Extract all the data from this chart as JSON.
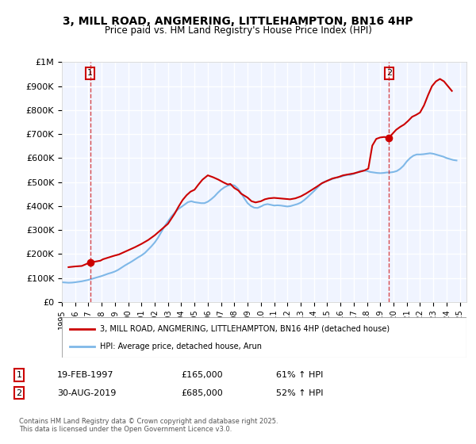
{
  "title": "3, MILL ROAD, ANGMERING, LITTLEHAMPTON, BN16 4HP",
  "subtitle": "Price paid vs. HM Land Registry's House Price Index (HPI)",
  "ylabel": "",
  "ylim": [
    0,
    1000000
  ],
  "yticks": [
    0,
    100000,
    200000,
    300000,
    400000,
    500000,
    600000,
    700000,
    800000,
    900000,
    1000000
  ],
  "ytick_labels": [
    "£0",
    "£100K",
    "£200K",
    "£300K",
    "£400K",
    "£500K",
    "£600K",
    "£700K",
    "£800K",
    "£900K",
    "£1M"
  ],
  "xlim_start": 1995.0,
  "xlim_end": 2025.5,
  "background_color": "#f0f4ff",
  "plot_bg_color": "#f0f4ff",
  "grid_color": "#ffffff",
  "red_line_color": "#cc0000",
  "blue_line_color": "#7fb8e8",
  "marker1_date": 1997.13,
  "marker1_value": 165000,
  "marker1_label": "1",
  "marker2_date": 2019.66,
  "marker2_value": 685000,
  "marker2_label": "2",
  "annotation1_date": "19-FEB-1997",
  "annotation1_price": "£165,000",
  "annotation1_hpi": "61% ↑ HPI",
  "annotation2_date": "30-AUG-2019",
  "annotation2_price": "£685,000",
  "annotation2_hpi": "52% ↑ HPI",
  "legend_label_red": "3, MILL ROAD, ANGMERING, LITTLEHAMPTON, BN16 4HP (detached house)",
  "legend_label_blue": "HPI: Average price, detached house, Arun",
  "footer": "Contains HM Land Registry data © Crown copyright and database right 2025.\nThis data is licensed under the Open Government Licence v3.0.",
  "hpi_years": [
    1995.0,
    1995.25,
    1995.5,
    1995.75,
    1996.0,
    1996.25,
    1996.5,
    1996.75,
    1997.0,
    1997.25,
    1997.5,
    1997.75,
    1998.0,
    1998.25,
    1998.5,
    1998.75,
    1999.0,
    1999.25,
    1999.5,
    1999.75,
    2000.0,
    2000.25,
    2000.5,
    2000.75,
    2001.0,
    2001.25,
    2001.5,
    2001.75,
    2002.0,
    2002.25,
    2002.5,
    2002.75,
    2003.0,
    2003.25,
    2003.5,
    2003.75,
    2004.0,
    2004.25,
    2004.5,
    2004.75,
    2005.0,
    2005.25,
    2005.5,
    2005.75,
    2006.0,
    2006.25,
    2006.5,
    2006.75,
    2007.0,
    2007.25,
    2007.5,
    2007.75,
    2008.0,
    2008.25,
    2008.5,
    2008.75,
    2009.0,
    2009.25,
    2009.5,
    2009.75,
    2010.0,
    2010.25,
    2010.5,
    2010.75,
    2011.0,
    2011.25,
    2011.5,
    2011.75,
    2012.0,
    2012.25,
    2012.5,
    2012.75,
    2013.0,
    2013.25,
    2013.5,
    2013.75,
    2014.0,
    2014.25,
    2014.5,
    2014.75,
    2015.0,
    2015.25,
    2015.5,
    2015.75,
    2016.0,
    2016.25,
    2016.5,
    2016.75,
    2017.0,
    2017.25,
    2017.5,
    2017.75,
    2018.0,
    2018.25,
    2018.5,
    2018.75,
    2019.0,
    2019.25,
    2019.5,
    2019.75,
    2020.0,
    2020.25,
    2020.5,
    2020.75,
    2021.0,
    2021.25,
    2021.5,
    2021.75,
    2022.0,
    2022.25,
    2022.5,
    2022.75,
    2023.0,
    2023.25,
    2023.5,
    2023.75,
    2024.0,
    2024.25,
    2024.5,
    2024.75
  ],
  "hpi_values": [
    82000,
    81000,
    80000,
    80500,
    82000,
    84000,
    86000,
    89000,
    92000,
    96000,
    100000,
    104000,
    108000,
    113000,
    118000,
    122000,
    127000,
    134000,
    143000,
    152000,
    160000,
    168000,
    177000,
    186000,
    194000,
    204000,
    218000,
    232000,
    248000,
    268000,
    292000,
    316000,
    336000,
    356000,
    372000,
    386000,
    396000,
    406000,
    416000,
    420000,
    416000,
    414000,
    412000,
    412000,
    418000,
    428000,
    440000,
    455000,
    468000,
    478000,
    485000,
    488000,
    486000,
    474000,
    455000,
    432000,
    412000,
    400000,
    393000,
    392000,
    398000,
    405000,
    408000,
    405000,
    402000,
    403000,
    402000,
    400000,
    398000,
    400000,
    404000,
    408000,
    414000,
    424000,
    436000,
    449000,
    462000,
    476000,
    490000,
    500000,
    506000,
    510000,
    515000,
    520000,
    522000,
    526000,
    530000,
    530000,
    534000,
    540000,
    546000,
    548000,
    546000,
    542000,
    540000,
    538000,
    537000,
    538000,
    540000,
    540000,
    542000,
    546000,
    555000,
    568000,
    586000,
    600000,
    610000,
    615000,
    615000,
    616000,
    618000,
    620000,
    618000,
    614000,
    610000,
    606000,
    600000,
    596000,
    592000,
    590000
  ],
  "price_years": [
    1995.5,
    1996.0,
    1996.5,
    1997.13,
    1997.5,
    1997.9,
    1998.1,
    1998.5,
    1998.9,
    1999.3,
    1999.7,
    2000.1,
    2000.5,
    2001.0,
    2001.5,
    2002.0,
    2002.5,
    2003.0,
    2003.5,
    2003.8,
    2004.1,
    2004.4,
    2004.7,
    2005.0,
    2005.3,
    2005.6,
    2006.0,
    2006.4,
    2006.8,
    2007.2,
    2007.5,
    2007.7,
    2008.0,
    2008.3,
    2008.5,
    2009.0,
    2009.3,
    2009.6,
    2010.0,
    2010.3,
    2010.6,
    2011.0,
    2011.4,
    2011.8,
    2012.2,
    2012.6,
    2013.0,
    2013.4,
    2013.8,
    2014.2,
    2014.6,
    2015.0,
    2015.4,
    2015.8,
    2016.2,
    2016.6,
    2017.0,
    2017.4,
    2017.8,
    2018.1,
    2018.4,
    2018.7,
    2019.0,
    2019.3,
    2019.66,
    2019.9,
    2020.2,
    2020.5,
    2020.8,
    2021.1,
    2021.4,
    2021.7,
    2022.0,
    2022.3,
    2022.6,
    2022.9,
    2023.2,
    2023.5,
    2023.8,
    2024.1,
    2024.4
  ],
  "price_values": [
    145000,
    148000,
    150000,
    165000,
    168000,
    172000,
    178000,
    185000,
    192000,
    198000,
    208000,
    218000,
    228000,
    242000,
    258000,
    278000,
    302000,
    326000,
    368000,
    398000,
    425000,
    445000,
    460000,
    468000,
    490000,
    510000,
    528000,
    520000,
    510000,
    498000,
    490000,
    492000,
    475000,
    465000,
    452000,
    435000,
    420000,
    415000,
    420000,
    428000,
    432000,
    434000,
    432000,
    430000,
    428000,
    432000,
    440000,
    452000,
    466000,
    480000,
    495000,
    505000,
    515000,
    520000,
    528000,
    532000,
    536000,
    542000,
    548000,
    556000,
    652000,
    680000,
    686000,
    688000,
    685000,
    700000,
    718000,
    730000,
    740000,
    755000,
    772000,
    780000,
    790000,
    820000,
    862000,
    900000,
    920000,
    930000,
    920000,
    900000,
    880000
  ]
}
